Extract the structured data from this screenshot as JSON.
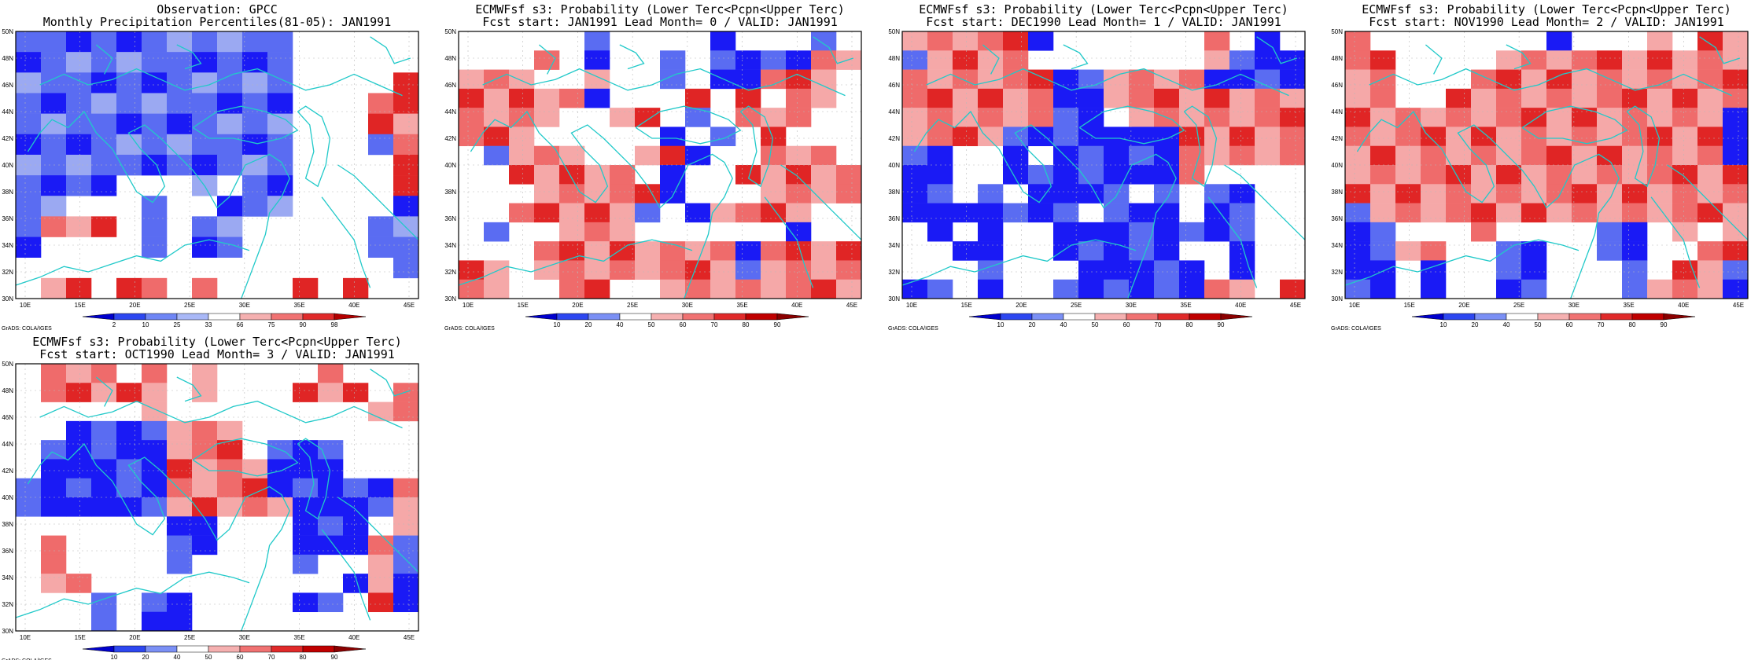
{
  "panels": [
    {
      "title_line1": "Observation: GPCC",
      "title_line2": "Monthly Precipitation Percentiles(81-05): JAN1991",
      "colorbar": [
        "2",
        "10",
        "25",
        "33",
        "66",
        "75",
        "90",
        "98"
      ],
      "footer": "GrADS: COLA/IGES",
      "grid": [
        "BBBBBBBBBBB_____",
        "BBBBBBBBBBB_____",
        "BBBBBBBBBBB____R",
        "BBBBBBBBBBB___RR",
        "BBBBBBBBBBB___RR",
        "BBBBBBBBBBB___BR",
        "BBBBBBBBBBB____R",
        "BBBB___B_BB____R",
        "BB___B__BBB____B",
        "BRRR_B_BB_____BB",
        "B____B_BB_____BB",
        "_______________B",
        "_RR_RR_R___R_R__"
      ]
    },
    {
      "title_line1": "ECMWFsf s3: Probability (Lower Terc<Pcpn<Upper Terc)",
      "title_line2": "Fcst start: JAN1991  Lead Month= 0 / VALID: JAN1991",
      "colorbar": [
        "10",
        "20",
        "40",
        "50",
        "60",
        "70",
        "80",
        "90"
      ],
      "footer": "GrADS: COLA/IGES",
      "grid": [
        "_____B____B___B_",
        "___R_B__B_BBBBRR",
        "RRR__R__B_BBRRR_",
        "RRRRRB___R_R_RR_",
        "RRRR__RR_B_RRR__",
        "RRR_____B_B_R___",
        "_BRRR__RRB__RRR_",
        "__RRRRR_B__RRRRR",
        "___RRRRRB___RRRR",
        "__RRRRRB_BRRRR__",
        "_B__RRR______B__",
        "___RRRRRRRRBRRRR",
        "RR_RRRRRRRRBRRRR",
        "RR__RR__RRRRRRRR"
      ]
    },
    {
      "title_line1": "ECMWFsf s3: Probability (Lower Terc<Pcpn<Upper Terc)",
      "title_line2": "Fcst start: DEC1990  Lead Month= 1 / VALID: JAN1991",
      "colorbar": [
        "10",
        "20",
        "40",
        "50",
        "60",
        "70",
        "80",
        "90"
      ],
      "footer": "GrADS: COLA/IGES",
      "grid": [
        "RRRRRB______R_B_",
        "BRRRR_______RBBB",
        "RRRRRRBBRRRRBBBB",
        "RRRRRRBBRRRRRRRR",
        "RRRRRRBB_RRRRRRR",
        "RRRRBBBBBBBRRRRR",
        "BB__B_BBBBBRRRRR",
        "BB__BBBBBBBR____",
        "BB_B_BBBB_B_BB__",
        "BBBBBBB_BBB_BB__",
        "_B_B__BBBBBBBB__",
        "__BB__BBBBB__B__",
        "___B___BBBBB_B__",
        "BB_B__BBBBBBRR_R"
      ]
    },
    {
      "title_line1": "ECMWFsf s3: Probability (Lower Terc<Pcpn<Upper Terc)",
      "title_line2": "Fcst start: NOV1990  Lead Month= 2 / VALID: JAN1991",
      "colorbar": [
        "10",
        "20",
        "40",
        "50",
        "60",
        "70",
        "80",
        "90"
      ],
      "footer": "GrADS: COLA/IGES",
      "grid": [
        "R_______B___R_RR",
        "RR____RRRRRRRRRR",
        "RR___RRRRRRRRRRR",
        "RR__RRRRRRRRRRRR",
        "RRRRRRRRRRRRRRRB",
        "RRRRRRRRRRRRRRRB",
        "RRRRRRRRRRRRRRRB",
        "RRRRRRRRRRRRRRRR",
        "RRRRRRRRRRRRRRRR",
        "BRRRRRRRRRRRRRRR",
        "BB___R____BB_R_R",
        "BBRR__BB__BB__RR",
        "BB_B__BB___B_RRB",
        "BB_B__BB___BRRRB"
      ]
    },
    {
      "title_line1": "ECMWFsf s3: Probability (Lower Terc<Pcpn<Upper Terc)",
      "title_line2": "Fcst start: OCT1990  Lead Month= 3 / VALID: JAN1991",
      "colorbar": [
        "10",
        "20",
        "40",
        "50",
        "60",
        "70",
        "80",
        "90"
      ],
      "footer": "GrADS: COLA/IGES",
      "grid": [
        "_RRR_R_R____R___",
        "_RRRRR_R___RRR_R",
        "_____R________RR",
        "__BBBBRRR_______",
        "_BBBBBRRR_BBB___",
        "_BBBBBRRRRBBB___",
        "BBBBBBRRRRBBBBBR",
        "BBBBBBRRRRRBBBBR",
        "______BB___BBB_R",
        "_R____BB___BBBRB",
        "_R____B____B__RB",
        "_RR__________BRB",
        "___B_BB____BB_RB",
        "___B_BB_________"
      ]
    }
  ],
  "x_ticks": [
    "10E",
    "15E",
    "20E",
    "25E",
    "30E",
    "35E",
    "40E",
    "45E"
  ],
  "y_ticks": [
    "50N",
    "48N",
    "46N",
    "44N",
    "42N",
    "40N",
    "38N",
    "36N",
    "34N",
    "32N",
    "30N"
  ],
  "palette": {
    "blue_strong": "#1a1af5",
    "blue_mid": "#5a6cf2",
    "blue_light": "#9ba9f2",
    "red_light": "#f5a8a8",
    "red_mid": "#ef6b6b",
    "red_strong": "#e02525",
    "coast": "#21c9c9",
    "obs_colorbar": [
      "#0000cc",
      "#2d47f0",
      "#6f86f5",
      "#a9b8f7",
      "#ffffff",
      "#f5b0b0",
      "#f07272",
      "#e02a2a",
      "#b30000"
    ],
    "fc_colorbar": [
      "#0000cc",
      "#2d47f0",
      "#7b90f5",
      "#ffffff",
      "#f5b0b0",
      "#f07272",
      "#e02a2a",
      "#bf0000",
      "#8a0000"
    ]
  }
}
